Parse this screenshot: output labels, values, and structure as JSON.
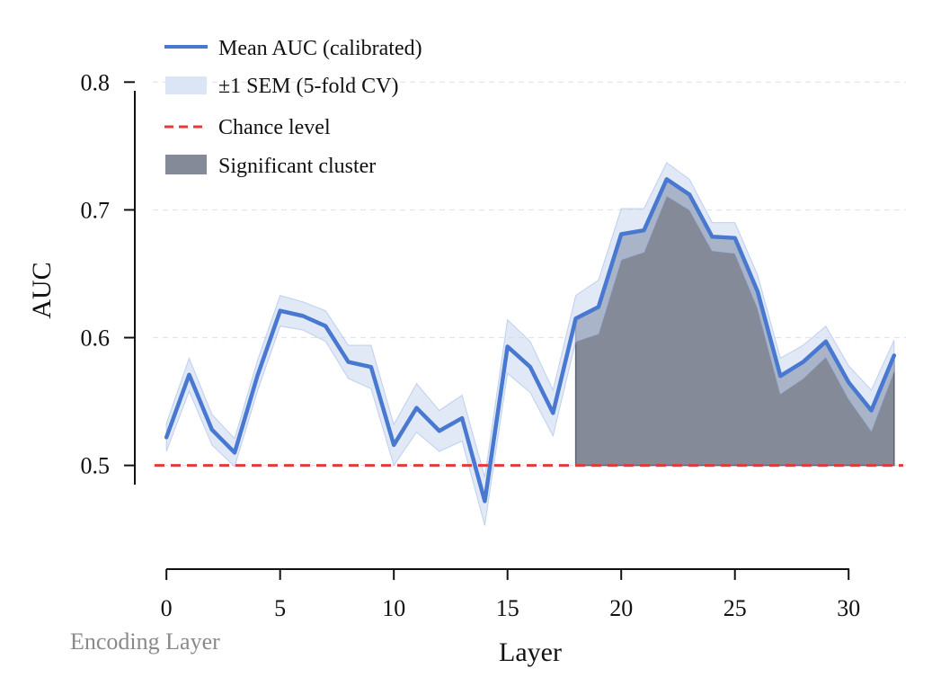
{
  "chart_data": {
    "type": "line",
    "xlabel": "Layer",
    "ylabel": "AUC",
    "xlim": [
      -0.6,
      32.6
    ],
    "ylim": [
      0.435,
      0.815
    ],
    "xticks": [
      0,
      5,
      10,
      15,
      20,
      25,
      30
    ],
    "xtick_labels": [
      "0",
      "5",
      "10",
      "15",
      "20",
      "25",
      "30"
    ],
    "yticks": [
      0.5,
      0.6,
      0.7,
      0.8
    ],
    "ytick_labels": [
      "0.5",
      "0.6",
      "0.7",
      "0.8"
    ],
    "grid": "y-dashed",
    "legend_position": "top-left",
    "corner_note": "Encoding Layer",
    "x": [
      0,
      1,
      2,
      3,
      4,
      5,
      6,
      7,
      8,
      9,
      10,
      11,
      12,
      13,
      14,
      15,
      16,
      17,
      18,
      19,
      20,
      21,
      22,
      23,
      24,
      25,
      26,
      27,
      28,
      29,
      30,
      31,
      32
    ],
    "series": [
      {
        "name": "Mean AUC (calibrated)",
        "color": "#4878cf",
        "values": [
          0.522,
          0.571,
          0.528,
          0.51,
          0.57,
          0.621,
          0.617,
          0.609,
          0.581,
          0.577,
          0.516,
          0.545,
          0.527,
          0.537,
          0.472,
          0.593,
          0.577,
          0.541,
          0.615,
          0.624,
          0.681,
          0.684,
          0.724,
          0.712,
          0.679,
          0.678,
          0.636,
          0.57,
          0.581,
          0.597,
          0.565,
          0.543,
          0.586
        ],
        "sem": [
          0.011,
          0.013,
          0.012,
          0.011,
          0.012,
          0.012,
          0.011,
          0.012,
          0.013,
          0.017,
          0.016,
          0.019,
          0.016,
          0.018,
          0.019,
          0.021,
          0.02,
          0.018,
          0.018,
          0.021,
          0.02,
          0.017,
          0.013,
          0.012,
          0.011,
          0.012,
          0.013,
          0.014,
          0.013,
          0.012,
          0.013,
          0.016,
          0.012
        ]
      }
    ],
    "sem_band": {
      "name": "±1 SEM (5-fold CV)",
      "color": "#dbe5f6"
    },
    "chance_level": {
      "name": "Chance level",
      "value": 0.5,
      "color": "#e23b3b"
    },
    "significant_cluster": {
      "name": "Significant cluster",
      "start": 18,
      "end": 32,
      "color": "#848a98"
    }
  }
}
